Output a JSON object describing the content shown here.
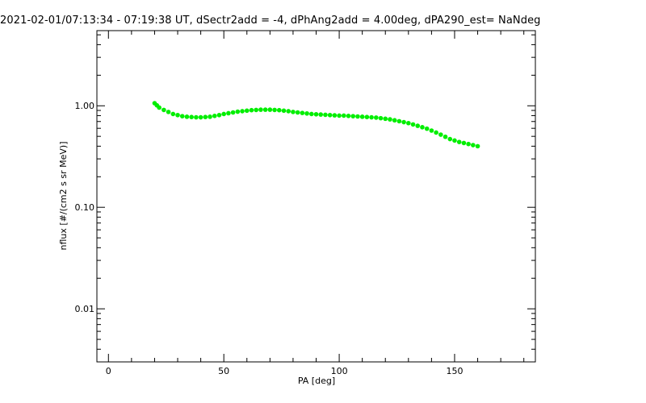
{
  "title": "2021-02-01/07:13:34 - 07:19:38 UT, dSectr2add = -4, dPhAng2add = 4.00deg, dPA290_est=   NaNdeg",
  "chart_data": {
    "type": "scatter",
    "title": "2021-02-01/07:13:34 - 07:19:38 UT, dSectr2add = -4, dPhAng2add = 4.00deg, dPA290_est=   NaNdeg",
    "xlabel": "PA [deg]",
    "ylabel": "nflux [#/(cm2 s sr MeV)]",
    "xlim": [
      -5,
      185
    ],
    "ylim": [
      0.003,
      5.5
    ],
    "yscale": "log",
    "x_ticks": [
      0,
      50,
      100,
      150
    ],
    "y_ticks": [
      {
        "value": 0.01,
        "label": "0.01"
      },
      {
        "value": 0.1,
        "label": "0.10"
      },
      {
        "value": 1.0,
        "label": "1.00"
      }
    ],
    "marker_color": "#00ee00",
    "series": [
      {
        "x": [
          20,
          21,
          22,
          24,
          26,
          28,
          30,
          32,
          34,
          36,
          38,
          40,
          42,
          44,
          46,
          48,
          50,
          52,
          54,
          56,
          58,
          60,
          62,
          64,
          66,
          68,
          70,
          72,
          74,
          76,
          78,
          80,
          82,
          84,
          86,
          88,
          90,
          92,
          94,
          96,
          98,
          100,
          102,
          104,
          106,
          108,
          110,
          112,
          114,
          116,
          118,
          120,
          122,
          124,
          126,
          128,
          130,
          132,
          134,
          136,
          138,
          140,
          142,
          144,
          146,
          148,
          150,
          152,
          154,
          156,
          158,
          160
        ],
        "values": [
          1.06,
          1.01,
          0.96,
          0.91,
          0.87,
          0.83,
          0.81,
          0.79,
          0.78,
          0.775,
          0.77,
          0.77,
          0.775,
          0.78,
          0.795,
          0.81,
          0.83,
          0.845,
          0.86,
          0.875,
          0.885,
          0.895,
          0.905,
          0.91,
          0.915,
          0.915,
          0.915,
          0.91,
          0.905,
          0.895,
          0.885,
          0.87,
          0.86,
          0.85,
          0.84,
          0.83,
          0.825,
          0.82,
          0.815,
          0.81,
          0.805,
          0.8,
          0.8,
          0.795,
          0.79,
          0.785,
          0.78,
          0.775,
          0.77,
          0.765,
          0.755,
          0.745,
          0.735,
          0.72,
          0.705,
          0.69,
          0.675,
          0.655,
          0.635,
          0.615,
          0.595,
          0.57,
          0.545,
          0.52,
          0.495,
          0.47,
          0.455,
          0.44,
          0.43,
          0.42,
          0.41,
          0.4
        ]
      }
    ]
  }
}
